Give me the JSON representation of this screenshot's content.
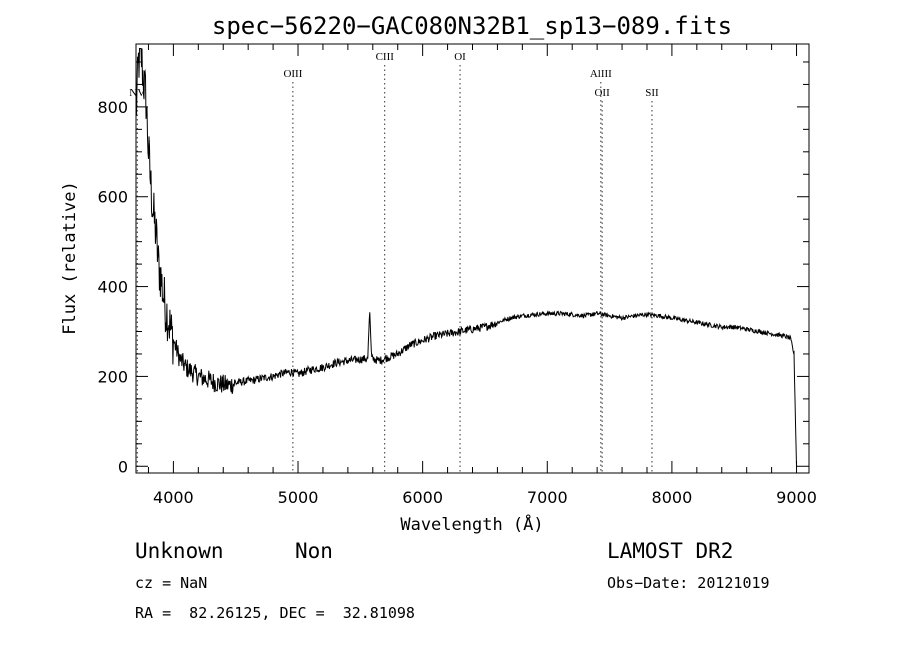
{
  "chart_data": {
    "type": "line",
    "title": "spec−56220−GAC080N32B1_sp13−089.fits",
    "xlabel": "Wavelength (Å)",
    "ylabel": "Flux (relative)",
    "xlim": [
      3700,
      9100
    ],
    "ylim": [
      -15,
      940
    ],
    "xticks": [
      4000,
      5000,
      6000,
      7000,
      8000,
      9000
    ],
    "yticks": [
      0,
      200,
      400,
      600,
      800
    ],
    "series": [
      {
        "x": [
          3700,
          3720,
          3740,
          3760,
          3780,
          3800,
          3820,
          3840,
          3860,
          3880,
          3900,
          3920,
          3940,
          3960,
          3980,
          4000,
          4050,
          4100,
          4150,
          4200,
          4250,
          4300,
          4350,
          4400,
          4450,
          4500,
          4550,
          4600,
          4650,
          4700,
          4750,
          4800,
          4850,
          4900,
          4950,
          5000,
          5100,
          5200,
          5300,
          5400,
          5500,
          5560,
          5575,
          5590,
          5650,
          5700,
          5800,
          5900,
          6000,
          6100,
          6200,
          6300,
          6400,
          6500,
          6600,
          6700,
          6800,
          6900,
          7000,
          7100,
          7200,
          7300,
          7400,
          7500,
          7600,
          7700,
          7800,
          7900,
          8000,
          8100,
          8200,
          8300,
          8400,
          8500,
          8600,
          8700,
          8800,
          8900,
          8950,
          8980,
          9000
        ],
        "y": [
          780,
          900,
          920,
          860,
          820,
          700,
          620,
          560,
          520,
          450,
          420,
          380,
          350,
          330,
          300,
          280,
          240,
          220,
          210,
          200,
          195,
          190,
          185,
          182,
          180,
          185,
          188,
          190,
          192,
          195,
          198,
          200,
          205,
          208,
          210,
          205,
          215,
          220,
          230,
          235,
          238,
          240,
          350,
          240,
          235,
          240,
          250,
          270,
          280,
          290,
          295,
          300,
          305,
          310,
          320,
          330,
          335,
          338,
          340,
          340,
          338,
          335,
          340,
          335,
          330,
          335,
          338,
          335,
          330,
          325,
          320,
          315,
          310,
          310,
          305,
          300,
          295,
          290,
          285,
          250,
          0
        ]
      }
    ],
    "lines": [
      {
        "name": "NV",
        "x": 3710,
        "row": 2
      },
      {
        "name": "OIII",
        "x": 4959,
        "row": 1
      },
      {
        "name": "CIII",
        "x": 5696,
        "row": 0
      },
      {
        "name": "OI",
        "x": 6300,
        "row": 0
      },
      {
        "name": "AlIII",
        "x": 7430,
        "row": 1
      },
      {
        "name": "OII",
        "x": 7440,
        "row": 2
      },
      {
        "name": "SII",
        "x": 7840,
        "row": 2
      }
    ],
    "grid": false
  },
  "footer": {
    "class": "Unknown",
    "subclass": "Non",
    "survey": "LAMOST DR2",
    "cz": "cz = NaN",
    "obs_date": "Obs−Date: 20121019",
    "coords": "RA =  82.26125, DEC =  32.81098"
  }
}
